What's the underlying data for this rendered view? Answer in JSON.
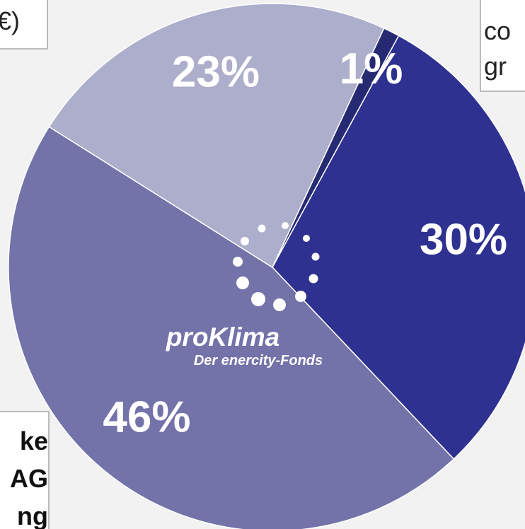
{
  "chart_data": {
    "type": "pie",
    "values": [
      1,
      30,
      46,
      23
    ],
    "value_labels": [
      "1%",
      "30%",
      "46%",
      "23%"
    ],
    "colors": [
      "#252a72",
      "#2e3190",
      "#7373aa",
      "#adadcc"
    ]
  },
  "annotations": [
    "€)",
    "co",
    "gr",
    "ke",
    "AG",
    "ng"
  ],
  "logo": {
    "name": "proKlima",
    "tagline": "Der enercity-Fonds"
  }
}
